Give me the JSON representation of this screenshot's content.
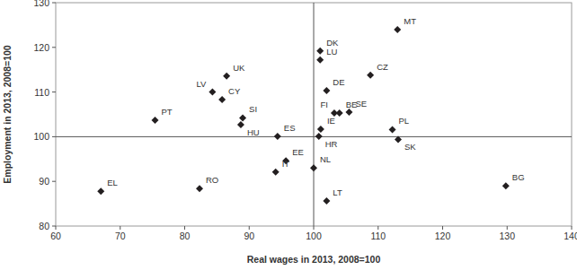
{
  "chart_data": {
    "type": "scatter",
    "x_label": "Real wages in 2013, 2008=100",
    "y_label": "Employment in 2013, 2008=100",
    "categories": [
      "MT",
      "DK",
      "LU",
      "CZ",
      "UK",
      "LV",
      "DE",
      "CY",
      "BE",
      "FI",
      "SE",
      "PT",
      "SI",
      "HU",
      "ES",
      "IE",
      "HR",
      "PL",
      "SK",
      "EE",
      "IT",
      "NL",
      "EL",
      "RO",
      "LT",
      "BG"
    ],
    "x": [
      113,
      101,
      101,
      108.8,
      86.5,
      84.3,
      102,
      85.8,
      104,
      103.2,
      105.5,
      75.4,
      89,
      88.7,
      94.4,
      101.1,
      100.8,
      112.2,
      113.1,
      95.7,
      94.1,
      100,
      67,
      82.3,
      102,
      129.8
    ],
    "values": [
      124,
      119.2,
      117.2,
      113.8,
      113.6,
      110,
      110.3,
      108.3,
      105.3,
      105.3,
      105.5,
      103.7,
      104.2,
      102.7,
      100.1,
      101.7,
      100.1,
      101.6,
      99.4,
      94.6,
      92.1,
      93,
      87.8,
      88.4,
      85.6,
      89
    ],
    "xlim": [
      60,
      140
    ],
    "xticks": [
      60,
      70,
      80,
      90,
      100,
      110,
      120,
      130,
      140
    ],
    "ylim": [
      80,
      130
    ],
    "yticks": [
      80,
      90,
      100,
      110,
      120,
      130
    ],
    "x_reference": 100,
    "y_reference": 100,
    "marker": "diamond",
    "color": "#231f20",
    "grid": false
  }
}
